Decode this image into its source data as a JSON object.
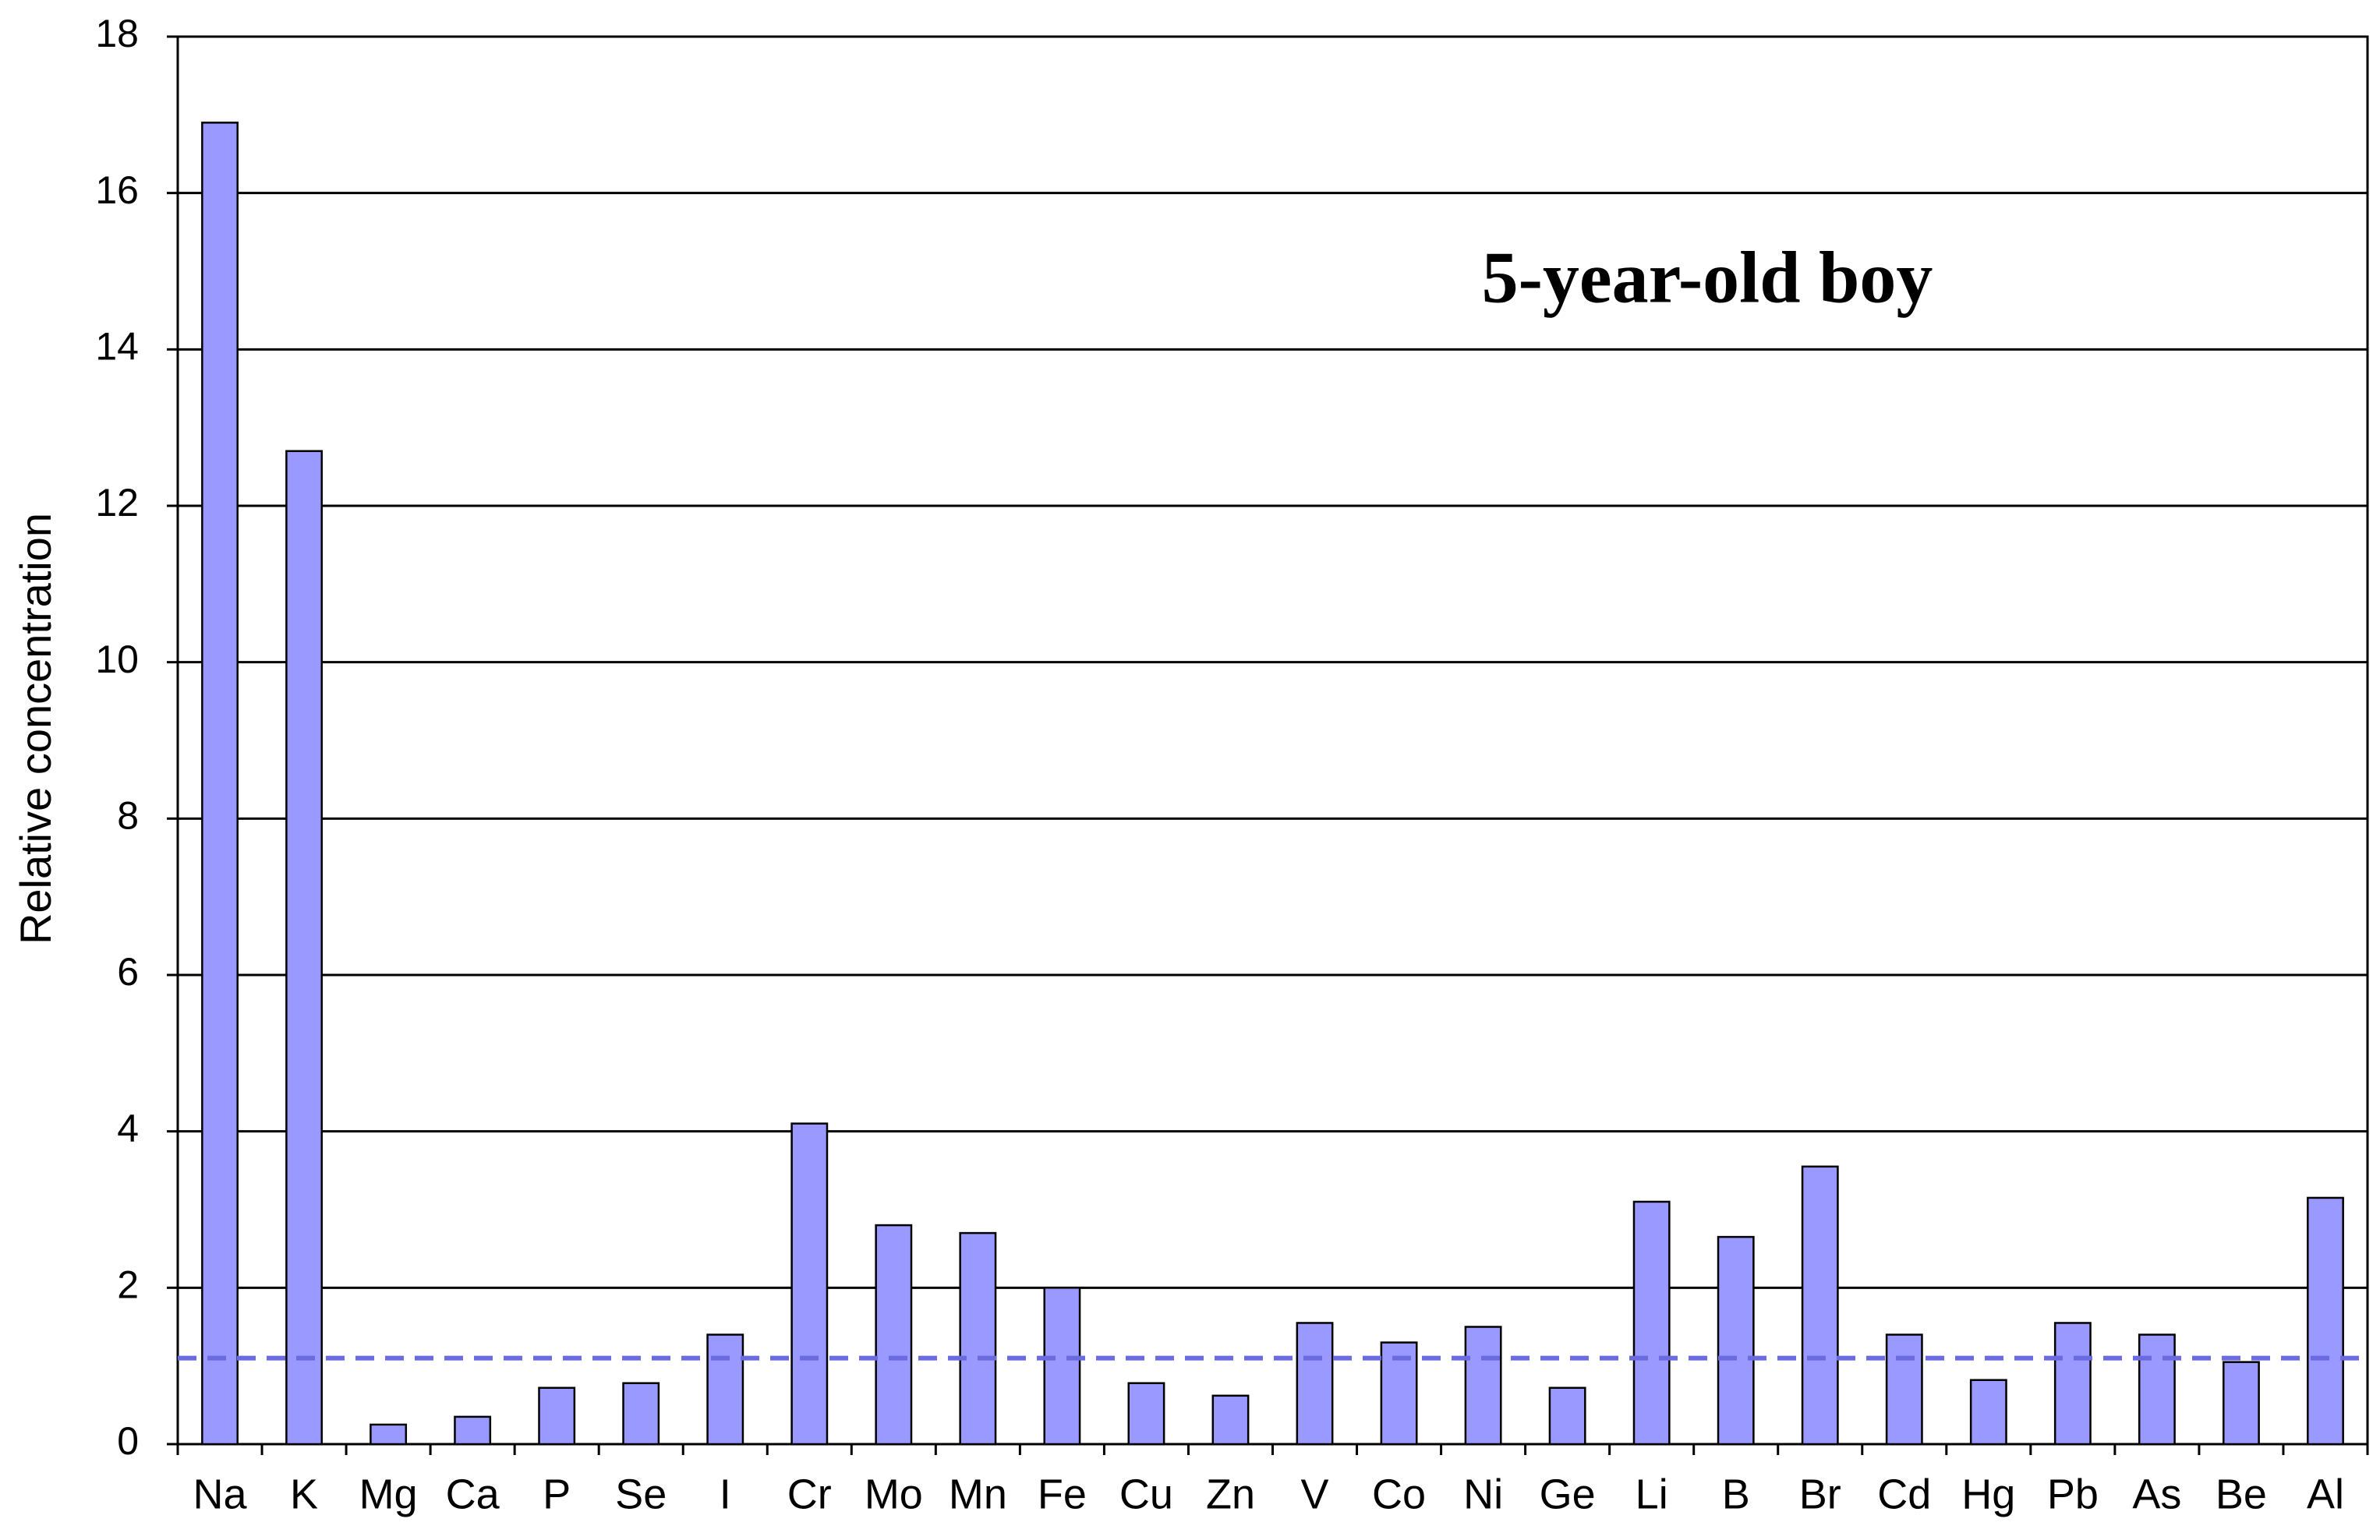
{
  "chart_data": {
    "type": "bar",
    "annotation": "5-year-old boy",
    "y_label": "Relative concentration",
    "categories": [
      "Na",
      "K",
      "Mg",
      "Ca",
      "P",
      "Se",
      "I",
      "Cr",
      "Mo",
      "Mn",
      "Fe",
      "Cu",
      "Zn",
      "V",
      "Co",
      "Ni",
      "Ge",
      "Li",
      "B",
      "Br",
      "Cd",
      "Hg",
      "Pb",
      "As",
      "Be",
      "Al"
    ],
    "values": [
      16.9,
      12.7,
      0.25,
      0.35,
      0.72,
      0.78,
      1.4,
      4.1,
      2.8,
      2.7,
      2.0,
      0.78,
      0.62,
      1.55,
      1.3,
      1.5,
      0.72,
      3.1,
      2.65,
      3.55,
      1.4,
      0.82,
      1.55,
      1.4,
      1.05,
      3.15
    ],
    "color": "#9999ff",
    "reference_line": 1.1,
    "reference_color": "#6b6be0",
    "ylim": [
      0,
      18
    ],
    "yticks": [
      0,
      2,
      4,
      6,
      8,
      10,
      12,
      14,
      16,
      18
    ],
    "grid": true
  }
}
